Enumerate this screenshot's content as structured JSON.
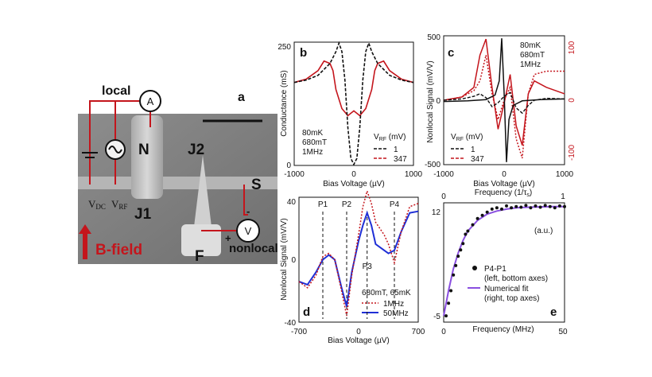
{
  "panel_a": {
    "label": "a",
    "local": "local",
    "ammeter": "A",
    "voltmeter": "V",
    "N": "N",
    "J1": "J1",
    "J2": "J2",
    "S": "S",
    "F": "F",
    "vdc": "V",
    "vdc_sub": "DC",
    "vrf": "V",
    "vrf_sub": "RF",
    "minus": "-",
    "plus": "+",
    "nonlocal": "nonlocal",
    "bfield": "B-field"
  },
  "colors": {
    "red": "#c4151c",
    "blue": "#1f2fd6",
    "purple": "#8a4fe0",
    "black": "#111111"
  },
  "chart_data": [
    {
      "id": "b",
      "type": "line",
      "title": "b",
      "xlabel": "Bias Voltage (µV)",
      "ylabel": "Conductance (mS)",
      "xlim": [
        -1000,
        1000
      ],
      "ylim": [
        0,
        260
      ],
      "xticks": [
        "-1000",
        "0",
        "1000"
      ],
      "yticks": [
        "0",
        "250"
      ],
      "conditions": [
        "80mK",
        "680mT",
        "1MHz"
      ],
      "legend_title": "V",
      "legend_title_sub": "RF",
      "legend_title_unit": " (mV)",
      "series": [
        {
          "name": "1",
          "x": [
            -1000,
            -800,
            -600,
            -400,
            -300,
            -250,
            -200,
            -150,
            -100,
            -50,
            0,
            50,
            100,
            150,
            200,
            250,
            300,
            400,
            600,
            800,
            1000
          ],
          "values": [
            175,
            180,
            190,
            215,
            240,
            258,
            240,
            180,
            80,
            15,
            2,
            15,
            80,
            180,
            240,
            258,
            240,
            215,
            190,
            180,
            175
          ]
        },
        {
          "name": "347",
          "x": [
            -1000,
            -800,
            -600,
            -500,
            -400,
            -350,
            -300,
            -200,
            -100,
            0,
            100,
            200,
            300,
            350,
            400,
            500,
            600,
            800,
            1000
          ],
          "values": [
            175,
            182,
            200,
            220,
            215,
            200,
            160,
            120,
            105,
            115,
            105,
            120,
            160,
            200,
            215,
            220,
            200,
            182,
            175
          ]
        }
      ]
    },
    {
      "id": "c",
      "type": "line",
      "title": "c",
      "xlabel": "Bias Voltage (µV)",
      "ylabel": "Nonlocal Signal (mV/V)",
      "xlim": [
        -1000,
        1000
      ],
      "ylim": [
        -500,
        500
      ],
      "xticks": [
        "-1000",
        "0",
        "1000"
      ],
      "yticks": [
        "-500",
        "0",
        "500"
      ],
      "right_ylim": [
        -100,
        100
      ],
      "right_yticks": [
        "-100",
        "0",
        "100"
      ],
      "conditions": [
        "80mK",
        "680mT",
        "1MHz"
      ],
      "legend_title": "V",
      "legend_title_sub": "RF",
      "legend_title_unit": " (mV)",
      "series": [
        {
          "name": "1",
          "axis": "left",
          "x": [
            -1000,
            -600,
            -300,
            -150,
            -80,
            -40,
            0,
            40,
            80,
            150,
            300,
            600,
            1000
          ],
          "values": [
            -10,
            -5,
            5,
            40,
            150,
            480,
            60,
            -480,
            -150,
            -40,
            -5,
            5,
            10
          ]
        },
        {
          "name": "347",
          "axis": "left",
          "x": [
            -1000,
            -700,
            -500,
            -400,
            -300,
            -200,
            -100,
            0,
            100,
            200,
            300,
            400,
            500,
            700,
            1000
          ],
          "values": [
            0,
            10,
            30,
            50,
            20,
            -50,
            -20,
            30,
            60,
            -60,
            -100,
            -40,
            0,
            15,
            10
          ]
        },
        {
          "name": "347 (red solid)",
          "axis": "right",
          "x": [
            -1000,
            -700,
            -500,
            -400,
            -300,
            -200,
            -100,
            0,
            100,
            200,
            300,
            400,
            500,
            700,
            1000
          ],
          "values": [
            0,
            5,
            20,
            70,
            95,
            20,
            -45,
            -5,
            40,
            -40,
            -70,
            10,
            30,
            20,
            10
          ]
        },
        {
          "name": "1 (red dotted)",
          "axis": "right",
          "x": [
            -1000,
            -700,
            -500,
            -400,
            -300,
            -200,
            -100,
            0,
            100,
            200,
            300,
            400,
            500,
            700,
            1000
          ],
          "values": [
            0,
            5,
            15,
            30,
            70,
            10,
            -30,
            0,
            20,
            -60,
            -90,
            10,
            40,
            45,
            45
          ]
        }
      ]
    },
    {
      "id": "d",
      "type": "line",
      "title": "d",
      "xlabel": "Bias Voltage (µV)",
      "ylabel": "Nonlocal Signal (mV/V)",
      "xlim": [
        -700,
        700
      ],
      "ylim": [
        -40,
        40
      ],
      "xticks": [
        "-700",
        "0",
        "700"
      ],
      "yticks": [
        "-40",
        "0",
        "40"
      ],
      "markers": [
        {
          "label": "P1",
          "x": -420
        },
        {
          "label": "P2",
          "x": -140
        },
        {
          "label": "P3",
          "x": 100
        },
        {
          "label": "P4",
          "x": 420
        }
      ],
      "legend_title": "680mT, 65mK",
      "series": [
        {
          "name": "1MHz",
          "x": [
            -700,
            -600,
            -500,
            -420,
            -350,
            -280,
            -200,
            -140,
            -80,
            0,
            50,
            100,
            150,
            200,
            300,
            350,
            420,
            500,
            600,
            700
          ],
          "values": [
            -14,
            -18,
            -10,
            2,
            4,
            0,
            -20,
            -36,
            -10,
            16,
            34,
            44,
            36,
            24,
            16,
            10,
            -2,
            18,
            34,
            36
          ]
        },
        {
          "name": "50MHz",
          "x": [
            -700,
            -600,
            -500,
            -420,
            -350,
            -280,
            -200,
            -140,
            -80,
            0,
            50,
            100,
            150,
            200,
            300,
            350,
            420,
            500,
            600,
            700
          ],
          "values": [
            -14,
            -16,
            -8,
            0,
            3,
            0,
            -18,
            -30,
            -8,
            12,
            22,
            30,
            22,
            10,
            6,
            4,
            6,
            18,
            30,
            31
          ]
        }
      ]
    },
    {
      "id": "e",
      "type": "scatter",
      "title": "e",
      "xlabel": "Frequency (MHz)",
      "ylabel": "",
      "xlim": [
        0,
        50
      ],
      "ylim": [
        -5,
        12
      ],
      "xticks": [
        "0",
        "50"
      ],
      "yticks": [
        "-5",
        "12"
      ],
      "top_xlabel": "Frequency (1/τ",
      "top_xlabel_sub": "s",
      "top_xlabel_end": ")",
      "top_xticks": [
        "0",
        "1"
      ],
      "right_ylabel": "(a.u.)",
      "series": [
        {
          "name": "P4-P1",
          "legend_lines": [
            "P4-P1",
            "(left, bottom axes)"
          ],
          "x": [
            1,
            2,
            3,
            4,
            5,
            6,
            7,
            8,
            9,
            10,
            12,
            14,
            16,
            18,
            20,
            22,
            24,
            26,
            28,
            30,
            32,
            34,
            36,
            38,
            40,
            42,
            44,
            46,
            48,
            50
          ],
          "values": [
            -5,
            -3,
            -1,
            1.5,
            3,
            4.5,
            5.5,
            6.5,
            8,
            8.5,
            9.5,
            10.5,
            11,
            11.5,
            12,
            12.2,
            12,
            12.5,
            12.2,
            12.4,
            12.3,
            12.6,
            12.2,
            12.5,
            12.3,
            12.6,
            12.4,
            12.2,
            12.5,
            12.4
          ]
        },
        {
          "name": "Numerical fit",
          "legend_lines": [
            "Numerical fit",
            "(right, top axes)"
          ],
          "x": [
            0,
            2,
            4,
            6,
            8,
            10,
            14,
            18,
            22,
            26,
            30,
            35,
            40,
            45,
            50
          ],
          "values": [
            -5,
            -1,
            2.5,
            5,
            7,
            8.5,
            10.2,
            11.2,
            11.7,
            12,
            12.2,
            12.3,
            12.35,
            12.4,
            12.4
          ]
        }
      ]
    }
  ]
}
